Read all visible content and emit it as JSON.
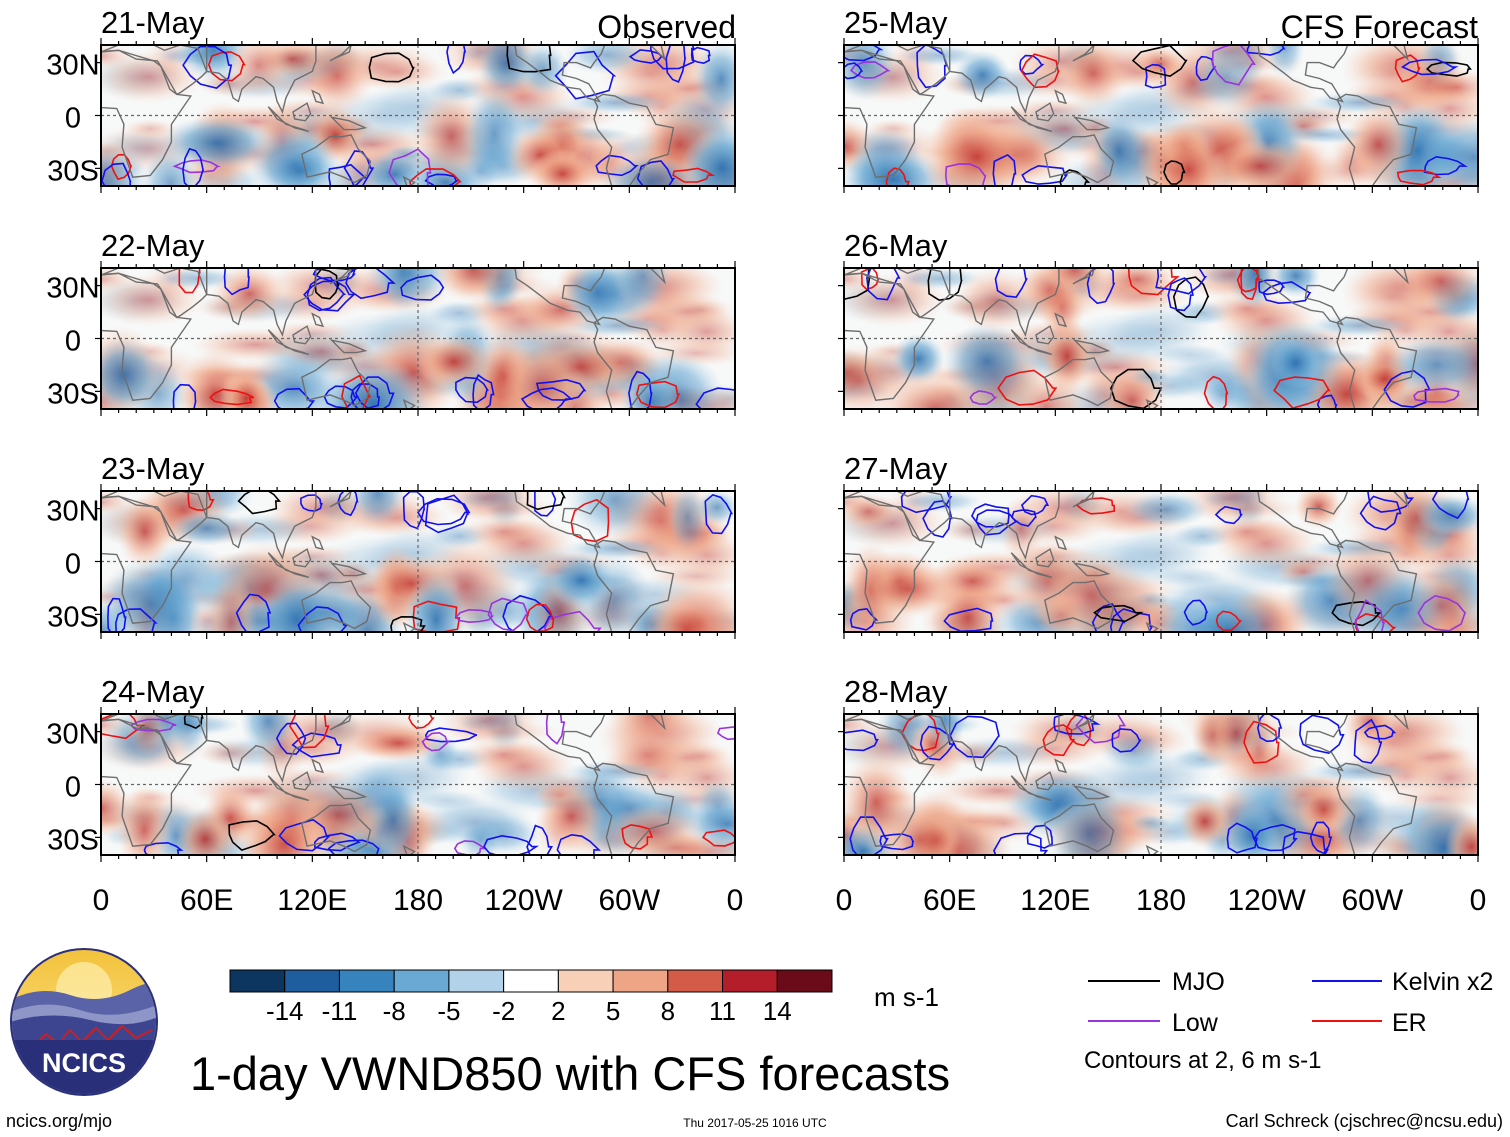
{
  "chart_data": {
    "type": "heatmap",
    "title": "1-day VWND850 with CFS forecasts",
    "variable": "VWND850",
    "units": "m s-1",
    "column_titles": {
      "left": "Observed",
      "right": "CFS Forecast"
    },
    "panels": {
      "observed": [
        "21-May",
        "22-May",
        "23-May",
        "24-May"
      ],
      "forecast": [
        "25-May",
        "26-May",
        "27-May",
        "28-May"
      ]
    },
    "x_ticks": [
      {
        "lon": 0,
        "label": "0"
      },
      {
        "lon": 60,
        "label": "60E"
      },
      {
        "lon": 120,
        "label": "120E"
      },
      {
        "lon": 180,
        "label": "180"
      },
      {
        "lon": 240,
        "label": "120W"
      },
      {
        "lon": 300,
        "label": "60W"
      },
      {
        "lon": 360,
        "label": "0"
      }
    ],
    "y_ticks": [
      {
        "lat": 30,
        "label": "30N"
      },
      {
        "lat": 0,
        "label": "0"
      },
      {
        "lat": -30,
        "label": "30S"
      }
    ],
    "lon_range": [
      0,
      360
    ],
    "lat_range": [
      -40,
      40
    ],
    "colorbar": {
      "labels": [
        "-14",
        "-11",
        "-8",
        "-5",
        "-2",
        "2",
        "5",
        "8",
        "11",
        "14"
      ],
      "colors": [
        "#0c3560",
        "#1f5e9e",
        "#3783bd",
        "#6aa9d3",
        "#b1d2e8",
        "#ffffff",
        "#f8cfb7",
        "#eea586",
        "#d55b49",
        "#b41e2b",
        "#6b0b1a"
      ],
      "units": "m s-1"
    },
    "legend": [
      {
        "label": "MJO",
        "color": "#000000"
      },
      {
        "label": "Kelvin x2",
        "color": "#1111ee"
      },
      {
        "label": "Low",
        "color": "#9933dd"
      },
      {
        "label": "ER",
        "color": "#ee1111"
      }
    ],
    "contour_note": "Contours at 2, 6 m s-1"
  },
  "logo": {
    "text": "NCICS"
  },
  "footer": {
    "url": "ncics.org/mjo",
    "timestamp": "Thu 2017-05-25 1016 UTC",
    "author": "Carl Schreck (cjschrec@ncsu.edu)"
  }
}
